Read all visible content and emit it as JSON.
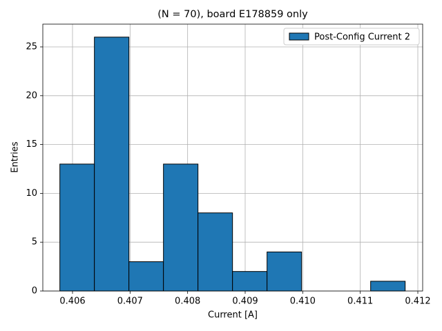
{
  "chart_data": {
    "type": "histogram",
    "title": "(N = 70), board E178859 only",
    "xlabel": "Current [A]",
    "ylabel": "Entries",
    "bins": [
      0.40578,
      0.40638,
      0.40698,
      0.40758,
      0.40818,
      0.40878,
      0.40938,
      0.40998,
      0.41058,
      0.41118,
      0.41178
    ],
    "series": [
      {
        "name": "Post-Config Current 2",
        "color": "#1f77b4",
        "values": [
          13,
          26,
          3,
          13,
          8,
          2,
          4,
          0,
          0,
          1
        ]
      }
    ],
    "xlim": [
      0.405484,
      0.412084
    ],
    "ylim": [
      0,
      27.33
    ],
    "xticks": [
      {
        "value": 0.406,
        "label": "0.406"
      },
      {
        "value": 0.407,
        "label": "0.407"
      },
      {
        "value": 0.408,
        "label": "0.408"
      },
      {
        "value": 0.409,
        "label": "0.409"
      },
      {
        "value": 0.41,
        "label": "0.410"
      },
      {
        "value": 0.411,
        "label": "0.411"
      },
      {
        "value": 0.412,
        "label": "0.412"
      }
    ],
    "yticks": [
      0,
      5,
      10,
      15,
      20,
      25
    ],
    "grid": true,
    "legend": "upper right"
  }
}
